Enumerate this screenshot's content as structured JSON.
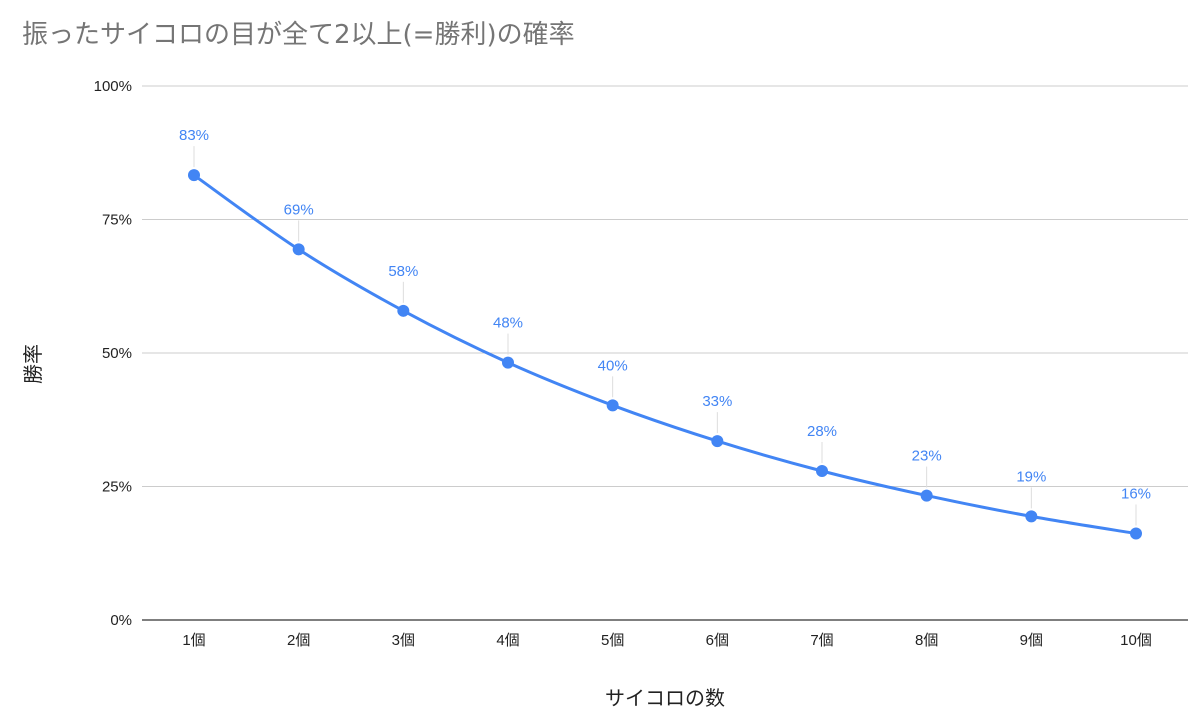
{
  "chart_data": {
    "type": "line",
    "title": "振ったサイコロの目が全て2以上(=勝利)の確率",
    "xlabel": "サイコロの数",
    "ylabel": "勝率",
    "categories": [
      "1個",
      "2個",
      "3個",
      "4個",
      "5個",
      "6個",
      "7個",
      "8個",
      "9個",
      "10個"
    ],
    "series": [
      {
        "values": [
          0.833,
          0.694,
          0.579,
          0.482,
          0.402,
          0.335,
          0.279,
          0.233,
          0.194,
          0.162
        ],
        "data_labels": [
          "83%",
          "69%",
          "58%",
          "48%",
          "40%",
          "33%",
          "28%",
          "23%",
          "19%",
          "16%"
        ]
      }
    ],
    "y_ticks": [
      0,
      0.25,
      0.5,
      0.75,
      1.0
    ],
    "y_tick_labels": [
      "0%",
      "25%",
      "50%",
      "75%",
      "100%"
    ],
    "ylim": [
      0,
      1
    ],
    "grid": true,
    "legend": "none",
    "colors": {
      "series": "#4285f4",
      "grid": "#cccccc",
      "axis": "#333333",
      "title": "#757575"
    }
  }
}
